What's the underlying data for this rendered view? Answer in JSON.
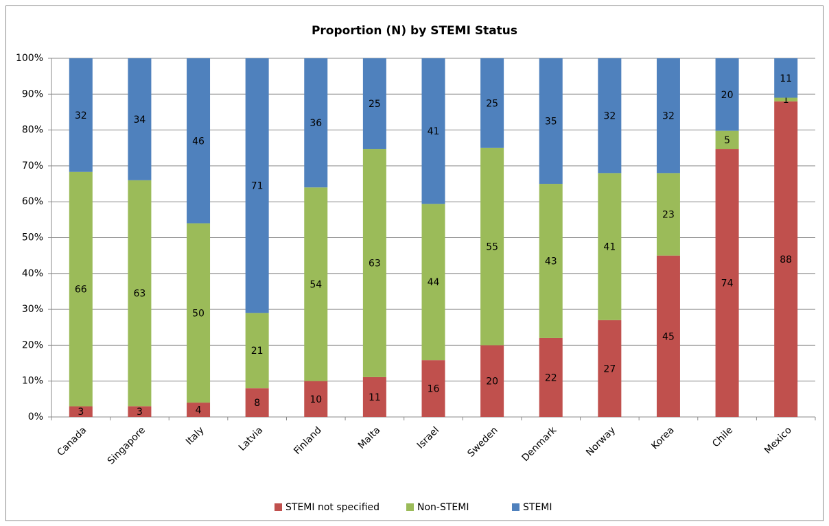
{
  "chart_data": {
    "type": "bar",
    "stacked": "percent",
    "title": "Proportion (N) by STEMI Status",
    "categories": [
      "Canada",
      "Singapore",
      "Italy",
      "Latvia",
      "Finland",
      "Malta",
      "Israel",
      "Sweden",
      "Denmark",
      "Norway",
      "Korea",
      "Chile",
      "Mexico"
    ],
    "series": [
      {
        "name": "STEMI not specified",
        "color": "#c0504d",
        "values": [
          3,
          3,
          4,
          8,
          10,
          11,
          16,
          20,
          22,
          27,
          45,
          74,
          88
        ]
      },
      {
        "name": "Non-STEMI",
        "color": "#9bbb59",
        "values": [
          66,
          63,
          50,
          21,
          54,
          63,
          44,
          55,
          43,
          41,
          23,
          5,
          1
        ]
      },
      {
        "name": "STEMI",
        "color": "#4f81bd",
        "values": [
          32,
          34,
          46,
          71,
          36,
          25,
          41,
          25,
          35,
          32,
          32,
          20,
          11
        ]
      }
    ],
    "ylim": [
      0,
      100
    ],
    "yticks": [
      {
        "value": 0,
        "label": "0%"
      },
      {
        "value": 10,
        "label": "10%"
      },
      {
        "value": 20,
        "label": "20%"
      },
      {
        "value": 30,
        "label": "30%"
      },
      {
        "value": 40,
        "label": "40%"
      },
      {
        "value": 50,
        "label": "50%"
      },
      {
        "value": 60,
        "label": "60%"
      },
      {
        "value": 70,
        "label": "70%"
      },
      {
        "value": 80,
        "label": "80%"
      },
      {
        "value": 90,
        "label": "90%"
      },
      {
        "value": 100,
        "label": "100%"
      }
    ],
    "grid": true,
    "legend": "bottom"
  }
}
